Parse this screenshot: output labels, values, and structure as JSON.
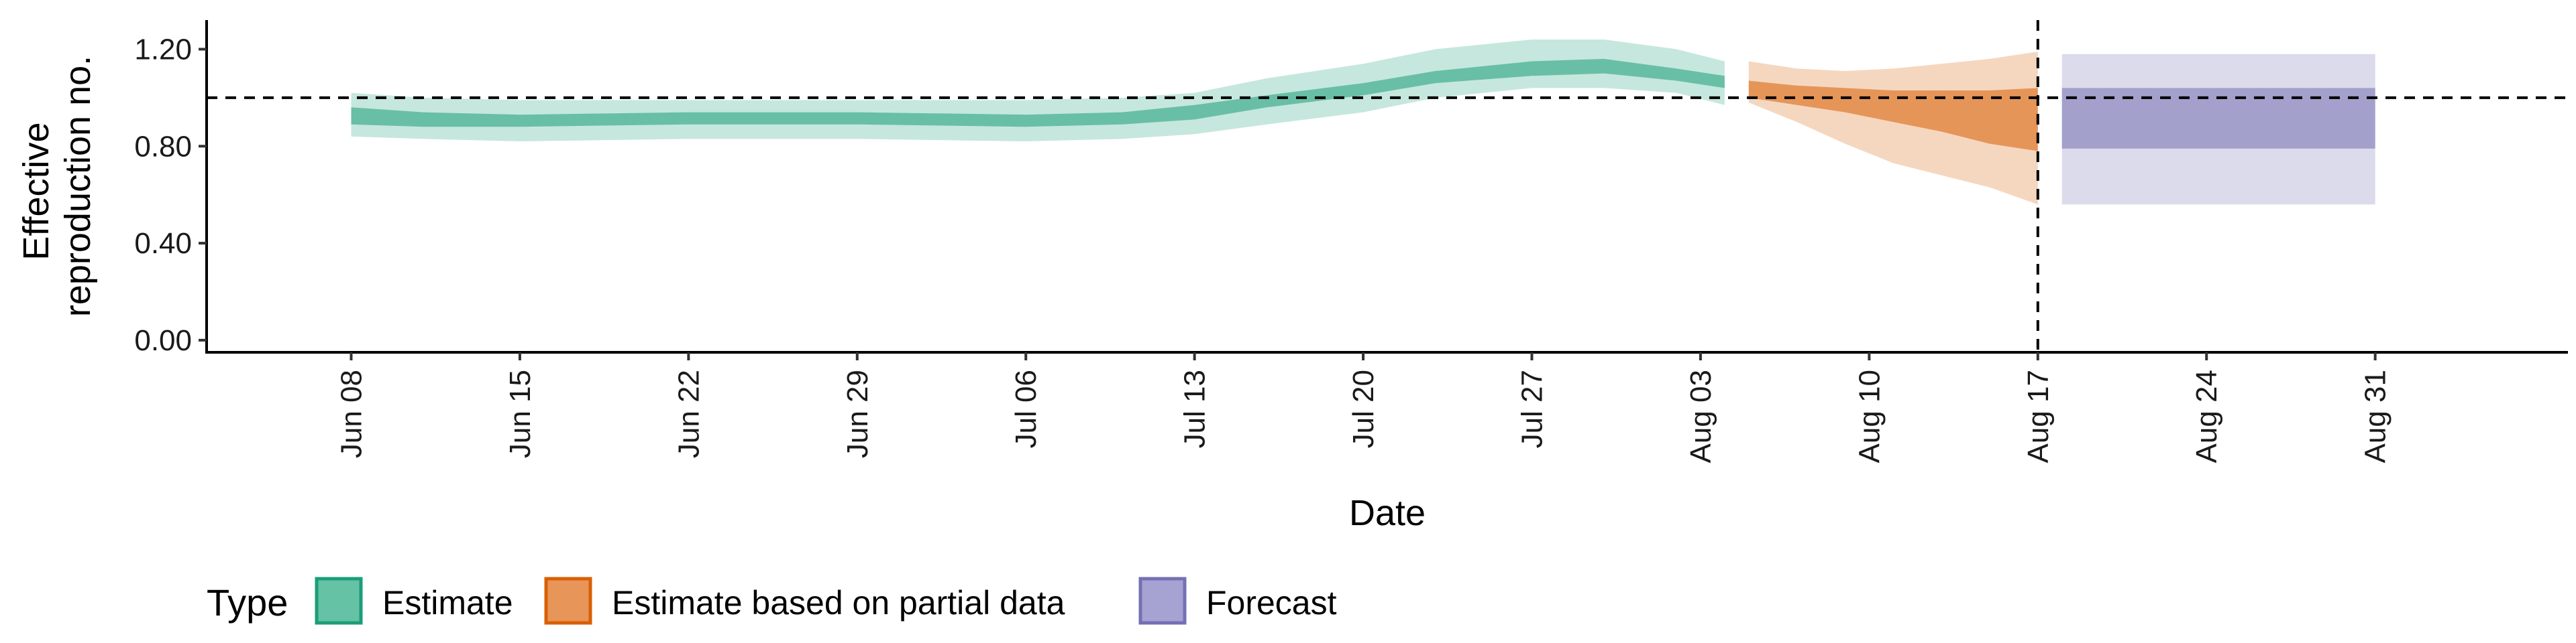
{
  "chart_data": {
    "type": "area",
    "xlabel": "Date",
    "ylabel": "Effective reproduction no.",
    "ylabel_lines": [
      "Effective",
      "reproduction no."
    ],
    "x_range": [
      "2020-06-02",
      "2020-09-08"
    ],
    "ylim": [
      -0.05,
      1.32
    ],
    "y_ticks": [
      0.0,
      0.4,
      0.8,
      1.2
    ],
    "y_tick_labels": [
      "0.00",
      "0.40",
      "0.80",
      "1.20"
    ],
    "x_ticks": [
      "2020-06-08",
      "2020-06-15",
      "2020-06-22",
      "2020-06-29",
      "2020-07-06",
      "2020-07-13",
      "2020-07-20",
      "2020-07-27",
      "2020-08-03",
      "2020-08-10",
      "2020-08-17",
      "2020-08-24",
      "2020-08-31"
    ],
    "x_tick_labels": [
      "Jun 08",
      "Jun 15",
      "Jun 22",
      "Jun 29",
      "Jul 06",
      "Jul 13",
      "Jul 20",
      "Jul 27",
      "Aug 03",
      "Aug 10",
      "Aug 17",
      "Aug 24",
      "Aug 31"
    ],
    "reference_hline": 1.0,
    "reference_vline": "2020-08-17",
    "grid": false,
    "legend": {
      "title": "Type",
      "position": "bottom-left",
      "entries": [
        {
          "label": "Estimate",
          "fill": "#66c2a5",
          "border": "#1b9e77"
        },
        {
          "label": "Estimate based on partial data",
          "fill": "#e8955a",
          "border": "#d95f02"
        },
        {
          "label": "Forecast",
          "fill": "#a6a2d2",
          "border": "#7570b3"
        }
      ]
    },
    "series": [
      {
        "name": "Estimate",
        "color": "#1b9e77",
        "dates": [
          "2020-06-08",
          "2020-06-11",
          "2020-06-15",
          "2020-06-22",
          "2020-06-29",
          "2020-07-06",
          "2020-07-10",
          "2020-07-13",
          "2020-07-16",
          "2020-07-20",
          "2020-07-23",
          "2020-07-27",
          "2020-07-30",
          "2020-08-02",
          "2020-08-04"
        ],
        "lower90": [
          0.84,
          0.83,
          0.82,
          0.83,
          0.83,
          0.82,
          0.83,
          0.85,
          0.89,
          0.94,
          1.0,
          1.04,
          1.04,
          1.02,
          0.97
        ],
        "lower50": [
          0.89,
          0.88,
          0.88,
          0.89,
          0.89,
          0.88,
          0.89,
          0.91,
          0.96,
          1.01,
          1.06,
          1.09,
          1.1,
          1.07,
          1.04
        ],
        "upper50": [
          0.96,
          0.94,
          0.93,
          0.94,
          0.94,
          0.93,
          0.94,
          0.97,
          1.01,
          1.06,
          1.11,
          1.15,
          1.16,
          1.12,
          1.09
        ],
        "upper90": [
          1.02,
          1.0,
          0.99,
          0.99,
          0.99,
          0.99,
          1.0,
          1.02,
          1.08,
          1.14,
          1.2,
          1.24,
          1.24,
          1.2,
          1.15
        ]
      },
      {
        "name": "Estimate based on partial data",
        "color": "#d95f02",
        "dates": [
          "2020-08-05",
          "2020-08-07",
          "2020-08-09",
          "2020-08-11",
          "2020-08-13",
          "2020-08-15",
          "2020-08-17"
        ],
        "lower90": [
          0.98,
          0.9,
          0.81,
          0.73,
          0.68,
          0.63,
          0.56
        ],
        "lower50": [
          1.0,
          0.97,
          0.94,
          0.9,
          0.86,
          0.81,
          0.78
        ],
        "upper50": [
          1.07,
          1.05,
          1.04,
          1.03,
          1.03,
          1.03,
          1.04
        ],
        "upper90": [
          1.15,
          1.12,
          1.11,
          1.12,
          1.14,
          1.16,
          1.19
        ]
      },
      {
        "name": "Forecast",
        "color": "#7570b3",
        "dates": [
          "2020-08-18",
          "2020-08-31"
        ],
        "lower90": [
          0.56,
          0.56
        ],
        "lower50": [
          0.79,
          0.79
        ],
        "upper50": [
          1.04,
          1.04
        ],
        "upper90": [
          1.18,
          1.18
        ]
      }
    ]
  }
}
